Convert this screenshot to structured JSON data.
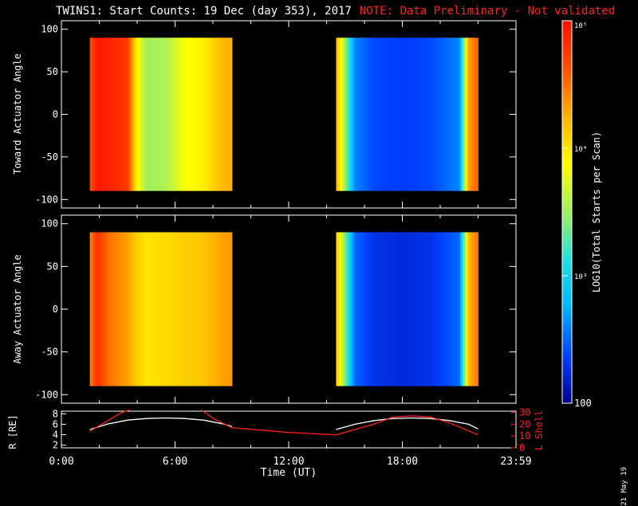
{
  "header": {
    "title": "TWINS1: Start Counts: 19 Dec (day 353), 2017",
    "note": "NOTE: Data Preliminary - Not validated"
  },
  "footer": {
    "datestamp": "21 May 19"
  },
  "colors": {
    "background": "#000000",
    "axes": "#ffffff",
    "note": "#ff2020",
    "lshell": "#ff2020",
    "radius": "#ffffff"
  },
  "colorbar": {
    "label": "LOG10(Total Starts per Scan)",
    "scale": "log",
    "range": [
      100,
      100000
    ],
    "ticks": [
      "100",
      "10³",
      "10⁴",
      "10⁵"
    ],
    "colormap": [
      "#00008c",
      "#0040ff",
      "#00b4ff",
      "#20e0e0",
      "#a0f060",
      "#ffff00",
      "#ffb000",
      "#ff5000",
      "#ff1000"
    ]
  },
  "chart_data": [
    {
      "type": "heatmap",
      "ylabel": "Toward Actuator Angle",
      "ylim": [
        -110,
        110
      ],
      "yticks": [
        100,
        50,
        0,
        -50,
        -100
      ],
      "xlim": [
        0,
        24
      ],
      "coverage": [
        {
          "start": 1.5,
          "end": 9.0
        },
        {
          "start": 14.5,
          "end": 22.0
        }
      ],
      "angle_range": [
        -90,
        90
      ],
      "profile_hours": [
        1.5,
        1.9,
        2.5,
        3.5,
        4.0,
        4.5,
        5.5,
        6.5,
        7.5,
        8.5,
        9.0,
        14.5,
        14.8,
        15.5,
        16.5,
        18.0,
        19.5,
        21.0,
        21.5,
        22.0
      ],
      "profile_log_counts": [
        4.6,
        4.95,
        4.9,
        4.75,
        3.9,
        3.5,
        3.55,
        3.85,
        3.95,
        4.2,
        4.25,
        4.25,
        3.8,
        2.6,
        2.4,
        2.35,
        2.4,
        2.6,
        4.3,
        4.6
      ]
    },
    {
      "type": "heatmap",
      "ylabel": "Away Actuator Angle",
      "ylim": [
        -110,
        110
      ],
      "yticks": [
        100,
        50,
        0,
        -50,
        -100
      ],
      "xlim": [
        0,
        24
      ],
      "coverage": [
        {
          "start": 1.5,
          "end": 9.0
        },
        {
          "start": 14.5,
          "end": 22.0
        }
      ],
      "angle_range": [
        -90,
        90
      ],
      "profile_hours": [
        1.5,
        1.9,
        2.5,
        3.5,
        4.0,
        4.5,
        5.5,
        6.5,
        7.5,
        8.5,
        9.0,
        14.5,
        14.8,
        15.5,
        16.5,
        18.0,
        19.5,
        21.0,
        21.5,
        22.0
      ],
      "profile_log_counts": [
        4.4,
        4.8,
        4.5,
        4.3,
        4.1,
        4.0,
        4.05,
        4.1,
        4.15,
        4.3,
        4.35,
        4.2,
        3.7,
        2.5,
        2.3,
        2.25,
        2.3,
        2.5,
        4.2,
        4.5
      ]
    },
    {
      "type": "line",
      "xlabel": "Time (UT)",
      "xlim": [
        0,
        24
      ],
      "xticks": [
        "0:00",
        "6:00",
        "12:00",
        "18:00",
        "23:59"
      ],
      "xtick_hours": [
        0,
        6,
        12,
        18,
        24
      ],
      "ylabel_left": "R [RE]",
      "ylim_left": [
        1.5,
        8.5
      ],
      "yticks_left": [
        8,
        6,
        4,
        2
      ],
      "ylabel_right": "L Shell",
      "ylim_right": [
        0,
        31
      ],
      "yticks_right": [
        30,
        20,
        10,
        0
      ],
      "series": [
        {
          "axis": "left",
          "color": "#ffffff",
          "segments": [
            {
              "x": [
                1.5,
                2.5,
                3.5,
                4.5,
                5.5,
                6.5,
                7.5,
                8.5,
                9.0
              ],
              "y": [
                5.0,
                6.1,
                6.8,
                7.1,
                7.2,
                7.1,
                6.8,
                6.1,
                5.6
              ]
            },
            {
              "x": [
                14.5,
                15.5,
                16.5,
                17.5,
                18.5,
                19.5,
                20.5,
                21.5,
                22.0
              ],
              "y": [
                5.0,
                6.0,
                6.7,
                7.1,
                7.2,
                7.1,
                6.7,
                6.0,
                5.1
              ]
            }
          ]
        },
        {
          "axis": "right",
          "color": "#ff2020",
          "segments": [
            {
              "x": [
                1.5,
                3.2,
                3.6
              ],
              "y": [
                14,
                30,
                32
              ]
            },
            {
              "x": [
                7.4,
                8.0,
                9.0,
                12.0,
                14.5
              ],
              "y": [
                32,
                25,
                17,
                13,
                11
              ]
            },
            {
              "x": [
                14.5,
                16.5,
                17.5,
                18.5,
                19.5,
                20.5,
                22.0
              ],
              "y": [
                11,
                20,
                26,
                27,
                26,
                21,
                11
              ]
            }
          ]
        }
      ]
    }
  ]
}
